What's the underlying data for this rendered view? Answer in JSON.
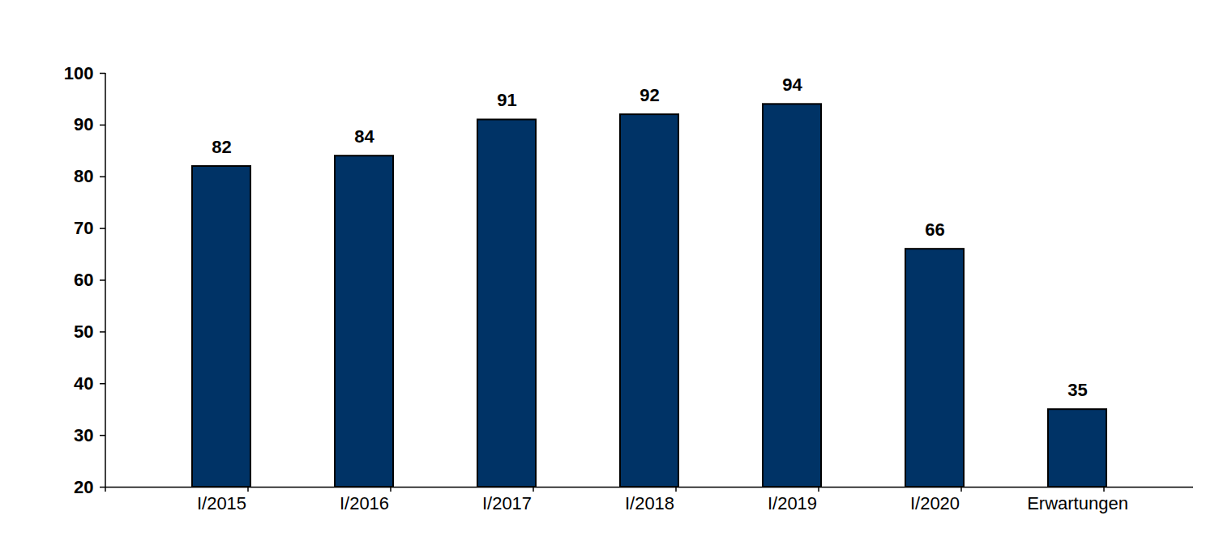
{
  "chart_data": {
    "type": "bar",
    "categories": [
      "I/2015",
      "I/2016",
      "I/2017",
      "I/2018",
      "I/2019",
      "I/2020",
      "Erwartungen"
    ],
    "values": [
      82,
      84,
      91,
      92,
      94,
      66,
      35
    ],
    "color": "#003366",
    "ylim": [
      20,
      100
    ],
    "yticks": [
      20,
      30,
      40,
      50,
      60,
      70,
      80,
      90,
      100
    ],
    "grid": false,
    "data_labels": true
  }
}
